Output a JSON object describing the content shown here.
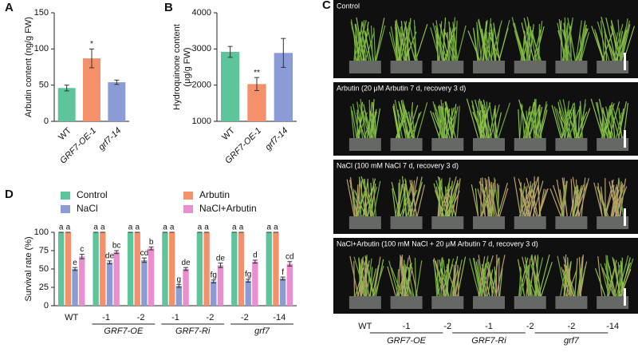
{
  "chart_data": [
    {
      "type": "bar",
      "panel": "A",
      "ylabel": "Arbutin content (ng/g FW)",
      "categories": [
        "WT",
        "GRF7-OE-1",
        "grf7-14"
      ],
      "values": [
        46,
        87,
        54
      ],
      "errors": [
        4,
        13,
        3
      ],
      "annotations": [
        null,
        "*",
        null
      ],
      "colors": [
        "#5dc49c",
        "#f4916a",
        "#8a9bd6"
      ],
      "ylim": [
        0,
        150
      ],
      "yticks": [
        0,
        50,
        100,
        150
      ]
    },
    {
      "type": "bar",
      "panel": "B",
      "ylabel": [
        "Hydroquinone content",
        "(μg/g FW)"
      ],
      "categories": [
        "WT",
        "GRF7-OE-1",
        "grf7-14"
      ],
      "values": [
        2920,
        2030,
        2890
      ],
      "errors": [
        150,
        180,
        400
      ],
      "annotations": [
        null,
        "**",
        null
      ],
      "colors": [
        "#5dc49c",
        "#f4916a",
        "#8a9bd6"
      ],
      "ylim": [
        1000,
        4000
      ],
      "yticks": [
        1000,
        2000,
        3000,
        4000
      ]
    },
    {
      "type": "grouped-bar",
      "panel": "D",
      "ylabel": "Survival rate (%)",
      "categories": [
        "WT",
        "-1",
        "-2",
        "-1",
        "-2",
        "-2",
        "-14"
      ],
      "group_labels": [
        "GRF7-OE",
        "GRF7-Ri",
        "grf7"
      ],
      "ylim": [
        0,
        100
      ],
      "yticks": [
        0,
        25,
        50,
        75,
        100
      ],
      "series": [
        {
          "name": "Control",
          "color": "#5dc49c",
          "values": [
            100,
            100,
            100,
            100,
            100,
            100,
            100
          ],
          "errors": [
            0,
            0,
            0,
            0,
            0,
            0,
            0
          ],
          "letters": [
            "a",
            "a",
            "a",
            "a",
            "a",
            "a",
            "a"
          ]
        },
        {
          "name": "Arbutin",
          "color": "#f4916a",
          "values": [
            100,
            100,
            100,
            100,
            100,
            100,
            100
          ],
          "errors": [
            0,
            0,
            0,
            0,
            0,
            0,
            0
          ],
          "letters": [
            "a",
            "a",
            "a",
            "a",
            "a",
            "a",
            "a"
          ]
        },
        {
          "name": "NaCl",
          "color": "#8a9bd6",
          "values": [
            50,
            59,
            62,
            27,
            33,
            34,
            37
          ],
          "errors": [
            2,
            2,
            3,
            2,
            2,
            2,
            2
          ],
          "letters": [
            "e",
            "de",
            "cd",
            "g",
            "fg",
            "fg",
            "f"
          ]
        },
        {
          "name": "NaCl+Arbutin",
          "color": "#ea8ed0",
          "values": [
            67,
            73,
            78,
            50,
            55,
            60,
            57
          ],
          "errors": [
            3,
            2,
            2,
            2,
            3,
            2,
            3
          ],
          "letters": [
            "c",
            "bc",
            "b",
            "de",
            "de",
            "d",
            "cd"
          ]
        }
      ]
    }
  ],
  "photo_panel": {
    "panel": "C",
    "rows": [
      "Control",
      "Arbutin (20 μM Arbutin 7 d, recovery 3 d)",
      "NaCl (100 mM NaCl 7 d, recovery 3 d)",
      "NaCl+Arbutin (100 mM NaCl + 20 μM Arbutin 7 d, recovery 3 d)"
    ],
    "genotypes": [
      "WT",
      "-1",
      "-2",
      "-1",
      "-2",
      "-2",
      "-14"
    ],
    "groups": [
      "GRF7-OE",
      "GRF7-Ri",
      "grf7"
    ]
  }
}
